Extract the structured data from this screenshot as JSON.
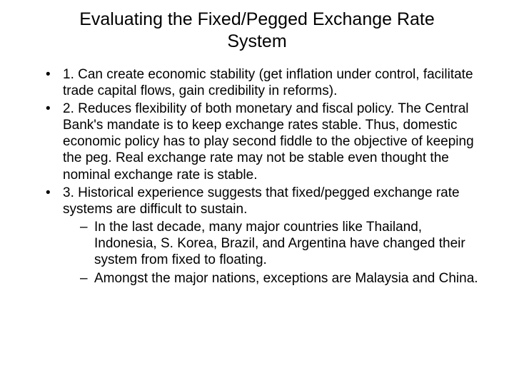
{
  "title": "Evaluating the Fixed/Pegged Exchange Rate System",
  "bullets": {
    "b1": "1. Can create economic stability (get inflation under control, facilitate trade capital flows, gain credibility in reforms).",
    "b2": "2. Reduces flexibility of both monetary and fiscal policy. The Central Bank's mandate is to keep exchange rates stable. Thus, domestic economic policy has to play second fiddle to the objective of keeping the peg. Real exchange rate may not be stable even thought the nominal exchange rate is stable.",
    "b3": "3. Historical experience suggests that fixed/pegged exchange rate systems are difficult to sustain.",
    "sub1": "In the last decade, many major countries like Thailand, Indonesia, S. Korea, Brazil, and Argentina have changed their system from fixed to floating.",
    "sub2": "Amongst the major nations, exceptions are Malaysia and China."
  },
  "styling": {
    "background_color": "#ffffff",
    "text_color": "#000000",
    "title_fontsize": 25,
    "body_fontsize": 19,
    "font_family": "Verdana, Geneva, sans-serif",
    "bullet_marker": "•",
    "sub_marker": "–"
  }
}
